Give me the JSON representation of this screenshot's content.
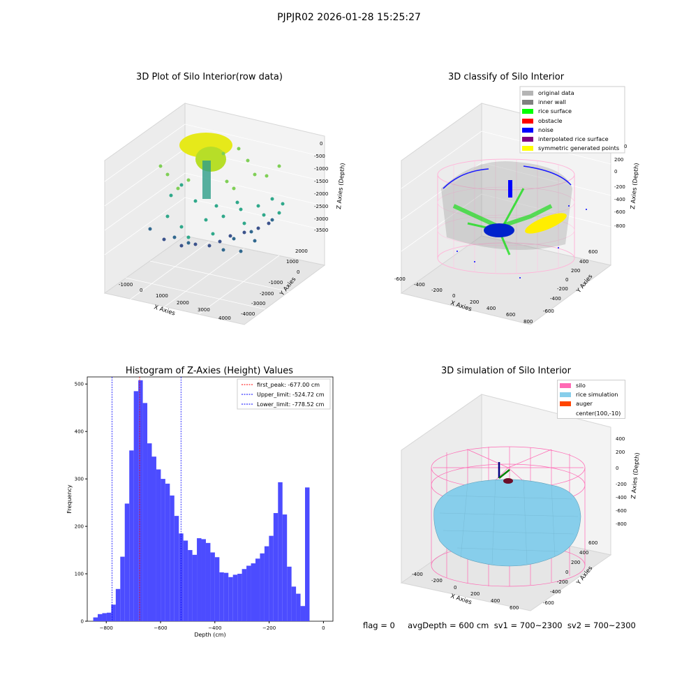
{
  "suptitle": "PJPJR02 2026-01-28 15:25:27",
  "panels": {
    "raw": {
      "title": "3D Plot of Silo Interior(row data)",
      "xlabel": "X Axies",
      "ylabel": "Y Axies",
      "zlabel": "Z Axies (Depth)",
      "xticks": [
        "-1000",
        "0",
        "1000",
        "2000",
        "3000",
        "4000"
      ],
      "yticks": [
        "2000",
        "1000",
        "0",
        "-1000",
        "-2000",
        "-3000",
        "-4000"
      ],
      "zticks": [
        "0",
        "-500",
        "-1000",
        "-1500",
        "-2000",
        "-2500",
        "-3000",
        "-3500"
      ]
    },
    "classify": {
      "title": "3D classify of Silo Interior",
      "xlabel": "X Axies",
      "ylabel": "Y Axies",
      "zlabel": "Z Axies (Depth)",
      "xticks": [
        "-600",
        "-400",
        "-200",
        "0",
        "200",
        "400",
        "600",
        "800"
      ],
      "yticks": [
        "600",
        "400",
        "200",
        "0",
        "-200",
        "-400",
        "-600"
      ],
      "zticks": [
        "200",
        "0",
        "-200",
        "-400",
        "-600",
        "-800"
      ],
      "z_top_partial": "0",
      "legend": [
        {
          "label": "original data",
          "color": "#b4b4b4"
        },
        {
          "label": "inner wall",
          "color": "#808080"
        },
        {
          "label": "rice surface",
          "color": "#00ff00"
        },
        {
          "label": "obstacle",
          "color": "#ff0000"
        },
        {
          "label": "noise",
          "color": "#0000ff"
        },
        {
          "label": "interpolated rice surface",
          "color": "#800080"
        },
        {
          "label": "symmetric generated points",
          "color": "#ffff00"
        }
      ]
    },
    "histogram": {
      "title": "Histogram of Z-Axies (Height) Values",
      "legend": [
        {
          "label": "first_peak: -677.00 cm",
          "color": "#ff0000"
        },
        {
          "label": "Upper_limit: -524.72 cm",
          "color": "#0000ff"
        },
        {
          "label": "Lower_limit: -778.52 cm",
          "color": "#0000ff"
        }
      ]
    },
    "simulation": {
      "title": "3D simulation of Silo Interior",
      "xlabel": "X Axies",
      "ylabel": "Y Axies",
      "zlabel": "Z Axies (Depth)",
      "xticks": [
        "-400",
        "-200",
        "0",
        "200",
        "400",
        "600"
      ],
      "yticks": [
        "600",
        "400",
        "200",
        "0",
        "-200",
        "-400",
        "-600"
      ],
      "zticks": [
        "400",
        "200",
        "0",
        "-200",
        "-400",
        "-600",
        "-800"
      ],
      "legend": [
        {
          "label": "silo",
          "color": "#ff69b4"
        },
        {
          "label": "rice simulation",
          "color": "#87ceeb"
        },
        {
          "label": "auger",
          "color": "#ff4500"
        },
        {
          "label": "center(100,-10)",
          "color": ""
        }
      ]
    }
  },
  "footer": "flag = 0     avgDepth = 600 cm  sv1 = 700~2300  sv2 = 700~2300",
  "chart_data": {
    "type": "bar",
    "title": "Histogram of Z-Axies (Height) Values",
    "xlabel": "Depth (cm)",
    "ylabel": "Frequency",
    "xlim": [
      -870,
      35
    ],
    "ylim": [
      0,
      515
    ],
    "xticks": [
      -800,
      -600,
      -400,
      -200,
      0
    ],
    "yticks": [
      0,
      100,
      200,
      300,
      400,
      500
    ],
    "bin_start": -848,
    "bin_width": 16.6,
    "values": [
      8,
      15,
      17,
      18,
      35,
      68,
      136,
      248,
      360,
      485,
      508,
      460,
      375,
      347,
      320,
      300,
      290,
      265,
      222,
      185,
      170,
      150,
      140,
      175,
      173,
      165,
      145,
      135,
      103,
      102,
      93,
      98,
      100,
      110,
      117,
      122,
      132,
      143,
      158,
      180,
      228,
      293,
      225,
      115,
      73,
      58,
      32,
      282
    ],
    "vlines": [
      {
        "x": -677.0,
        "color": "#ff0000"
      },
      {
        "x": -524.72,
        "color": "#0000ff"
      },
      {
        "x": -778.52,
        "color": "#0000ff"
      }
    ]
  }
}
